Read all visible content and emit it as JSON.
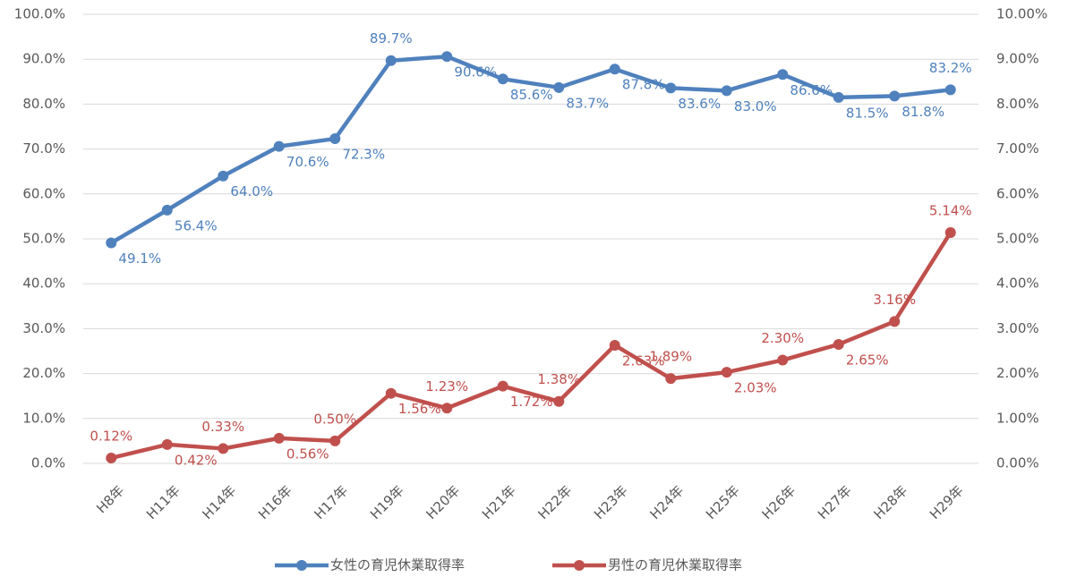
{
  "chart_data": {
    "type": "line",
    "categories": [
      "H8年",
      "H11年",
      "H14年",
      "H16年",
      "H17年",
      "H19年",
      "H20年",
      "H21年",
      "H22年",
      "H23年",
      "H24年",
      "H25年",
      "H26年",
      "H27年",
      "H28年",
      "H29年"
    ],
    "series": [
      {
        "name": "女性の育児休業取得率",
        "color": "#4f81bd",
        "values": [
          49.1,
          56.4,
          64.0,
          70.6,
          72.3,
          89.7,
          90.6,
          85.6,
          83.7,
          87.8,
          83.6,
          83.0,
          86.6,
          81.5,
          81.8,
          83.2
        ],
        "value_labels": [
          "49.1%",
          "56.4%",
          "64.0%",
          "70.6%",
          "72.3%",
          "89.7%",
          "90.6%",
          "85.6%",
          "83.7%",
          "87.8%",
          "83.6%",
          "83.0%",
          "86.6%",
          "81.5%",
          "81.8%",
          "83.2%"
        ]
      },
      {
        "name": "男性の育児休業取得率",
        "color": "#c0504d",
        "axis": "y2",
        "values": [
          0.12,
          0.42,
          0.33,
          0.56,
          0.5,
          1.56,
          1.23,
          1.72,
          1.38,
          2.63,
          1.89,
          2.03,
          2.3,
          2.65,
          3.16,
          5.14
        ],
        "value_labels": [
          "0.12%",
          "0.42%",
          "0.33%",
          "0.56%",
          "0.50%",
          "1.56%",
          "1.23%",
          "1.72%",
          "1.38%",
          "2.63%",
          "1.89%",
          "2.03%",
          "2.30%",
          "2.65%",
          "3.16%",
          "5.14%"
        ]
      }
    ],
    "ylim": [
      0,
      100
    ],
    "yticks": [
      {
        "value": 0,
        "label": "0.0%"
      },
      {
        "value": 10,
        "label": "10.0%"
      },
      {
        "value": 20,
        "label": "20.0%"
      },
      {
        "value": 30,
        "label": "30.0%"
      },
      {
        "value": 40,
        "label": "40.0%"
      },
      {
        "value": 50,
        "label": "50.0%"
      },
      {
        "value": 60,
        "label": "60.0%"
      },
      {
        "value": 70,
        "label": "70.0%"
      },
      {
        "value": 80,
        "label": "80.0%"
      },
      {
        "value": 90,
        "label": "90.0%"
      },
      {
        "value": 100,
        "label": "100.0%"
      }
    ],
    "y2lim": [
      0,
      10
    ],
    "y2ticks": [
      {
        "value": 0,
        "label": "0.00%"
      },
      {
        "value": 1,
        "label": "1.00%"
      },
      {
        "value": 2,
        "label": "2.00%"
      },
      {
        "value": 3,
        "label": "3.00%"
      },
      {
        "value": 4,
        "label": "4.00%"
      },
      {
        "value": 5,
        "label": "5.00%"
      },
      {
        "value": 6,
        "label": "6.00%"
      },
      {
        "value": 7,
        "label": "7.00%"
      },
      {
        "value": 8,
        "label": "8.00%"
      },
      {
        "value": 9,
        "label": "9.00%"
      },
      {
        "value": 10,
        "label": "10.00%"
      }
    ],
    "grid": true,
    "legend": "bottom"
  }
}
